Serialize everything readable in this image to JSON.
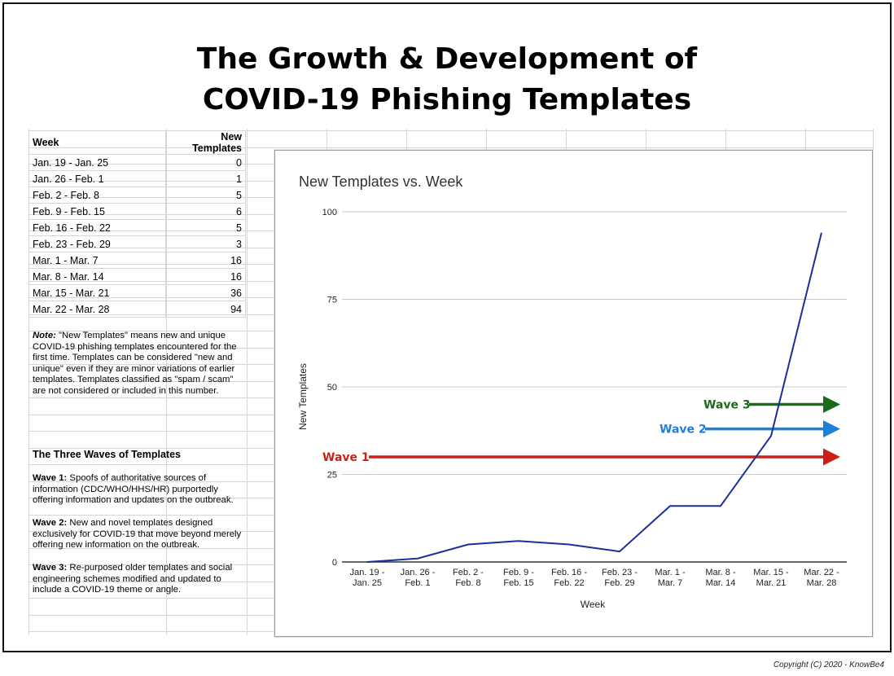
{
  "page": {
    "title_line1": "The Growth & Development of",
    "title_line2": "COVID-19 Phishing Templates",
    "copyright": "Copyright (C) 2020 - KnowBe4"
  },
  "table": {
    "headers": [
      "Week",
      "New Templates"
    ],
    "rows": [
      [
        "Jan. 19 - Jan. 25",
        "0"
      ],
      [
        "Jan. 26 - Feb. 1",
        "1"
      ],
      [
        "Feb. 2 - Feb. 8",
        "5"
      ],
      [
        "Feb. 9 - Feb. 15",
        "6"
      ],
      [
        "Feb. 16 - Feb. 22",
        "5"
      ],
      [
        "Feb. 23 - Feb. 29",
        "3"
      ],
      [
        "Mar. 1 - Mar. 7",
        "16"
      ],
      [
        "Mar. 8 - Mar. 14",
        "16"
      ],
      [
        "Mar. 15 - Mar. 21",
        "36"
      ],
      [
        "Mar. 22 - Mar. 28",
        "94"
      ]
    ]
  },
  "note": {
    "label": "Note:",
    "text": " \"New Templates\" means new and unique COVID-19 phishing templates encountered for the first time. Templates can be considered \"new and unique\" even if they are minor variations of earlier templates. Templates classified as \"spam / scam\" are not considered or included in this number."
  },
  "waves": {
    "title": "The Three Waves of Templates",
    "items": [
      {
        "label": "Wave 1:",
        "text": " Spoofs of authoritative sources of information (CDC/WHO/HHS/HR) purportedly offering information and updates on the outbreak."
      },
      {
        "label": "Wave 2:",
        "text": " New and novel templates designed exclusively for COVID-19 that move beyond merely offering new information on the outbreak."
      },
      {
        "label": "Wave 3:",
        "text": " Re-purposed older templates and social engineering schemes modified and updated to include a COVID-19 theme or angle."
      }
    ]
  },
  "chart_data": {
    "type": "line",
    "title": "New Templates vs. Week",
    "xlabel": "Week",
    "ylabel": "New Templates",
    "ylim": [
      0,
      100
    ],
    "yticks": [
      0,
      25,
      50,
      75,
      100
    ],
    "grid": true,
    "categories": [
      [
        "Jan. 19 -",
        "Jan. 25"
      ],
      [
        "Jan. 26 -",
        "Feb. 1"
      ],
      [
        "Feb. 2 -",
        "Feb. 8"
      ],
      [
        "Feb. 9 -",
        "Feb. 15"
      ],
      [
        "Feb. 16 -",
        "Feb. 22"
      ],
      [
        "Feb. 23 -",
        "Feb. 29"
      ],
      [
        "Mar. 1 -",
        "Mar. 7"
      ],
      [
        "Mar. 8 -",
        "Mar. 14"
      ],
      [
        "Mar. 15 -",
        "Mar. 21"
      ],
      [
        "Mar. 22 -",
        "Mar. 28"
      ]
    ],
    "series": [
      {
        "values": [
          0,
          1,
          5,
          6,
          5,
          3,
          16,
          16,
          36,
          94
        ],
        "color": "#1a2f9c"
      }
    ],
    "annotations": [
      {
        "label": "Wave 1",
        "color": "#cc1f1a",
        "y": 30
      },
      {
        "label": "Wave 2",
        "color": "#1e7fd6",
        "y": 38
      },
      {
        "label": "Wave 3",
        "color": "#1a6b1a",
        "y": 45
      }
    ]
  }
}
